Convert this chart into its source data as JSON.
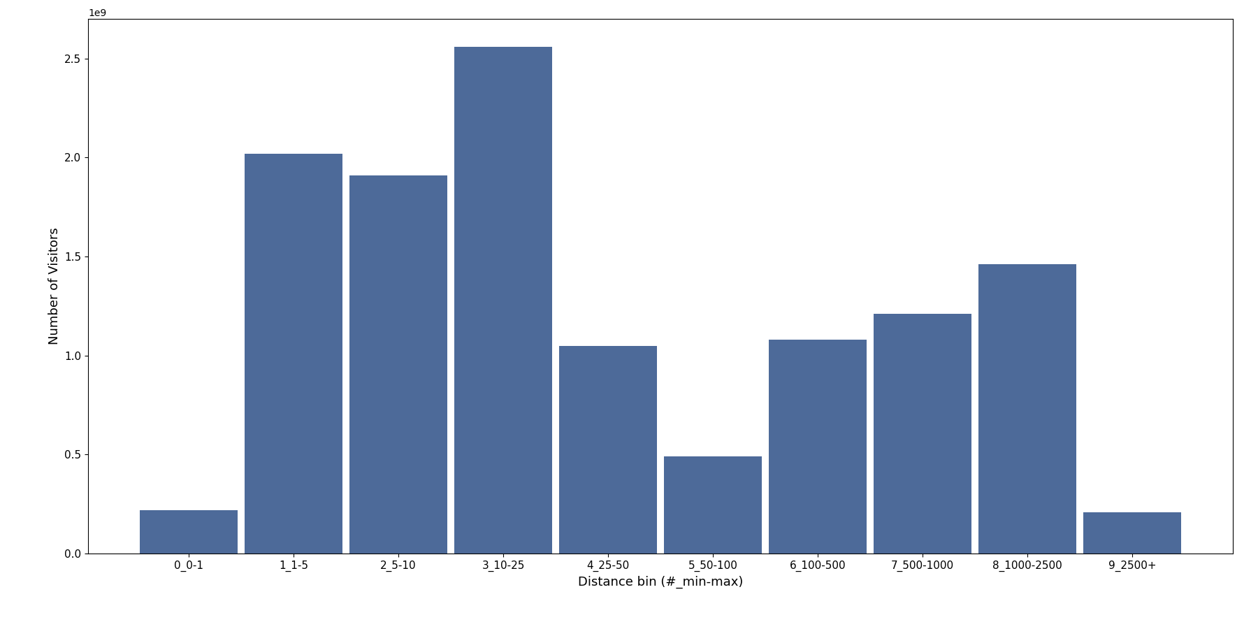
{
  "categories": [
    "0_0-1",
    "1_1-5",
    "2_5-10",
    "3_10-25",
    "4_25-50",
    "5_50-100",
    "6_100-500",
    "7_500-1000",
    "8_1000-2500",
    "9_2500+"
  ],
  "values": [
    220000000.0,
    2020000000.0,
    1910000000.0,
    2560000000.0,
    1050000000.0,
    490000000.0,
    1080000000.0,
    1210000000.0,
    1460000000.0,
    210000000.0
  ],
  "bar_color": "#4d6a99",
  "xlabel": "Distance bin (#_min-max)",
  "ylabel": "Number of Visitors",
  "ylim": [
    0,
    2700000000.0
  ],
  "figsize": [
    18.0,
    9.0
  ],
  "dpi": 100,
  "bar_width": 0.93,
  "tick_fontsize": 11,
  "label_fontsize": 13
}
